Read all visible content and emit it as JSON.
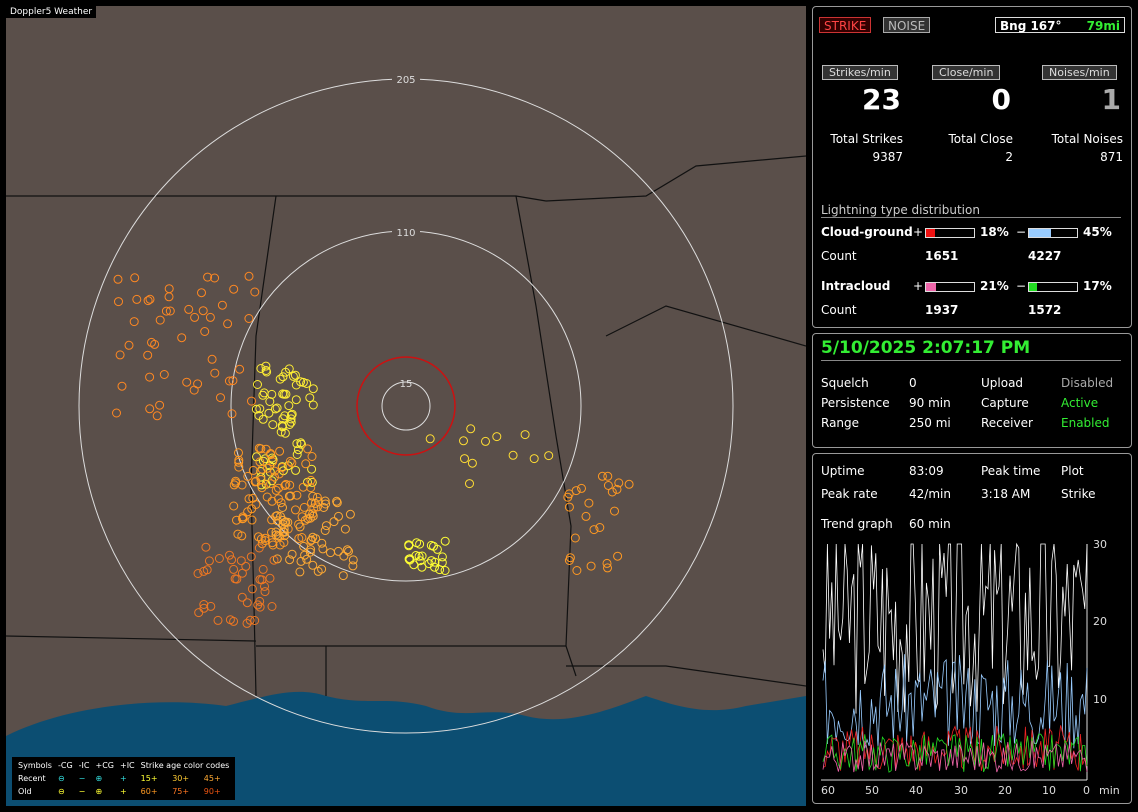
{
  "map": {
    "title": "Doppler5 Weather",
    "ring_labels": [
      "205",
      "110",
      "15"
    ]
  },
  "legend": {
    "headers": [
      "Symbols",
      "-CG",
      "-IC",
      "+CG",
      "+IC",
      "Strike age color codes"
    ],
    "recent_label": "Recent",
    "old_label": "Old",
    "recent_ages": [
      "15+",
      "30+",
      "45+"
    ],
    "old_ages": [
      "60+",
      "75+",
      "90+"
    ]
  },
  "status": {
    "strike_label": "STRIKE",
    "noise_label": "NOISE",
    "bearing_label": "Bng 167°",
    "distance": "79mi"
  },
  "stats": {
    "strikes_per_min_label": "Strikes/min",
    "close_per_min_label": "Close/min",
    "noises_per_min_label": "Noises/min",
    "strikes_per_min": "23",
    "close_per_min": "0",
    "noises_per_min": "1",
    "total_strikes_label": "Total Strikes",
    "total_close_label": "Total Close",
    "total_noises_label": "Total Noises",
    "total_strikes": "9387",
    "total_close": "2",
    "total_noises": "871"
  },
  "distribution": {
    "title": "Lightning type distribution",
    "cg_label": "Cloud-ground",
    "ic_label": "Intracloud",
    "count_label": "Count",
    "plus": "+",
    "minus": "−",
    "cg_pos_pct": "18%",
    "cg_neg_pct": "45%",
    "ic_pos_pct": "21%",
    "ic_neg_pct": "17%",
    "cg_pos_frac": 0.18,
    "cg_neg_frac": 0.45,
    "ic_pos_frac": 0.21,
    "ic_neg_frac": 0.17,
    "cg_pos_count": "1651",
    "cg_neg_count": "4227",
    "ic_pos_count": "1937",
    "ic_neg_count": "1572",
    "colors": {
      "cg_pos": "#ee1111",
      "cg_neg": "#99ccff",
      "ic_pos": "#ee66aa",
      "ic_neg": "#22dd22"
    }
  },
  "settings": {
    "datetime": "5/10/2025 2:07:17 PM",
    "squelch_label": "Squelch",
    "squelch": "0",
    "persistence_label": "Persistence",
    "persistence": "90 min",
    "range_label": "Range",
    "range": "250 mi",
    "upload_label": "Upload",
    "upload": "Disabled",
    "capture_label": "Capture",
    "capture": "Active",
    "receiver_label": "Receiver",
    "receiver": "Enabled"
  },
  "trend": {
    "uptime_label": "Uptime",
    "uptime": "83:09",
    "peak_time_label": "Peak time",
    "peak_time": "3:18 AM",
    "plot_label": "Plot",
    "plot": "Strike",
    "peak_rate_label": "Peak rate",
    "peak_rate": "42/min",
    "trend_graph_label": "Trend graph",
    "trend_graph": "60 min",
    "y_ticks": [
      "30",
      "20",
      "10"
    ],
    "x_ticks": [
      "60",
      "50",
      "40",
      "30",
      "20",
      "10",
      "0"
    ],
    "x_unit": "min"
  }
}
